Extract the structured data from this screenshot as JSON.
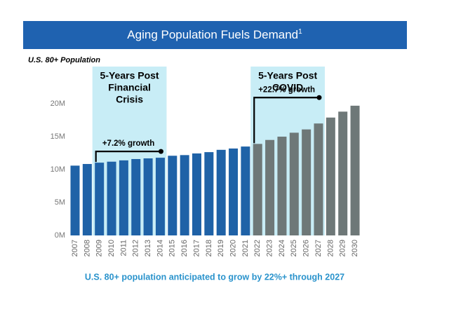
{
  "chart_data": {
    "type": "bar",
    "title": "Aging Population Fuels Demand",
    "title_superscript": "1",
    "subtitle": "U.S. 80+ Population",
    "categories": [
      "2007",
      "2008",
      "2009",
      "2010",
      "2011",
      "2012",
      "2013",
      "2014",
      "2015",
      "2016",
      "2017",
      "2018",
      "2019",
      "2020",
      "2021",
      "2022",
      "2023",
      "2024",
      "2025",
      "2026",
      "2027",
      "2028",
      "2029",
      "2030"
    ],
    "values": [
      10.6,
      10.85,
      11.05,
      11.2,
      11.4,
      11.6,
      11.7,
      11.8,
      12.1,
      12.2,
      12.45,
      12.65,
      13.0,
      13.2,
      13.5,
      13.9,
      14.5,
      15.0,
      15.6,
      16.1,
      17.0,
      17.9,
      18.8,
      19.7
    ],
    "colors": [
      "#1f62a7",
      "#1f62a7",
      "#1f62a7",
      "#1f62a7",
      "#1f62a7",
      "#1f62a7",
      "#1f62a7",
      "#1f62a7",
      "#1f62a7",
      "#1f62a7",
      "#1f62a7",
      "#1f62a7",
      "#1f62a7",
      "#1f62a7",
      "#1f62a7",
      "#6e7878",
      "#6e7878",
      "#6e7878",
      "#6e7878",
      "#6e7878",
      "#6e7878",
      "#6e7878",
      "#6e7878",
      "#6e7878"
    ],
    "ylim": [
      0,
      20.6
    ],
    "yticks": [
      {
        "value": 0,
        "label": "0M"
      },
      {
        "value": 5,
        "label": "5M"
      },
      {
        "value": 10,
        "label": "10M"
      },
      {
        "value": 15,
        "label": "15M"
      },
      {
        "value": 20,
        "label": "20M"
      }
    ],
    "grid": false,
    "annotations": [
      {
        "label": [
          "5-Years Post",
          "Financial",
          "Crisis"
        ],
        "growth": "+7.2% growth"
      },
      {
        "label": [
          "5-Years Post",
          "COVID"
        ],
        "growth": "+22.7% growth"
      }
    ],
    "footnote": "U.S. 80+ population anticipated to grow by 22%+ through 2027"
  }
}
